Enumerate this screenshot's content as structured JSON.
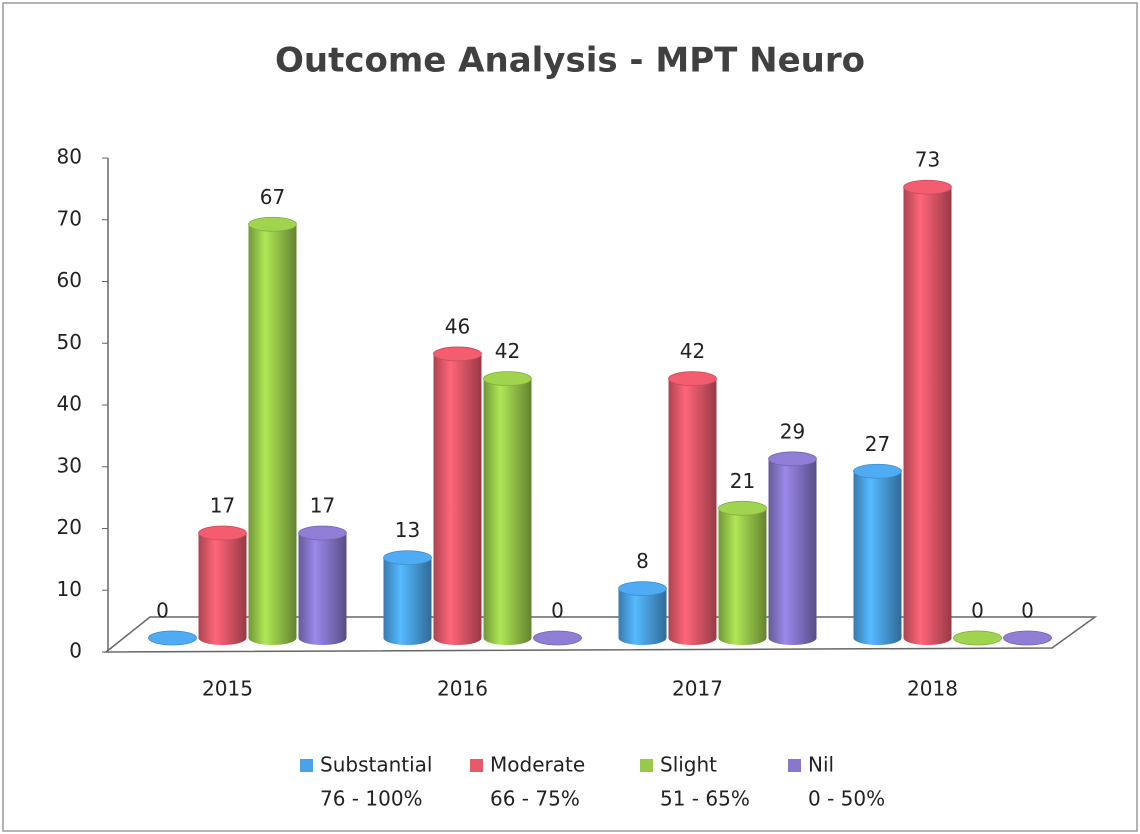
{
  "chart_data": {
    "type": "bar3d",
    "title": "Outcome Analysis - MPT Neuro",
    "categories": [
      "2015",
      "2016",
      "2017",
      "2018"
    ],
    "series": [
      {
        "name": "Substantial",
        "range": "76 - 100%",
        "color": "#4aa3e8",
        "values": [
          0,
          13,
          8,
          27
        ]
      },
      {
        "name": "Moderate",
        "range": "66 - 75%",
        "color": "#e8596a",
        "values": [
          17,
          46,
          42,
          73
        ]
      },
      {
        "name": "Slight",
        "range": "51 - 65%",
        "color": "#98c94a",
        "values": [
          67,
          42,
          21,
          0
        ]
      },
      {
        "name": "Nil",
        "range": "0 - 50%",
        "color": "#8877cc",
        "values": [
          17,
          0,
          29,
          0
        ]
      }
    ],
    "ylim": [
      0,
      80
    ],
    "yticks": [
      0,
      10,
      20,
      30,
      40,
      50,
      60,
      70,
      80
    ],
    "legend": "bottom"
  }
}
